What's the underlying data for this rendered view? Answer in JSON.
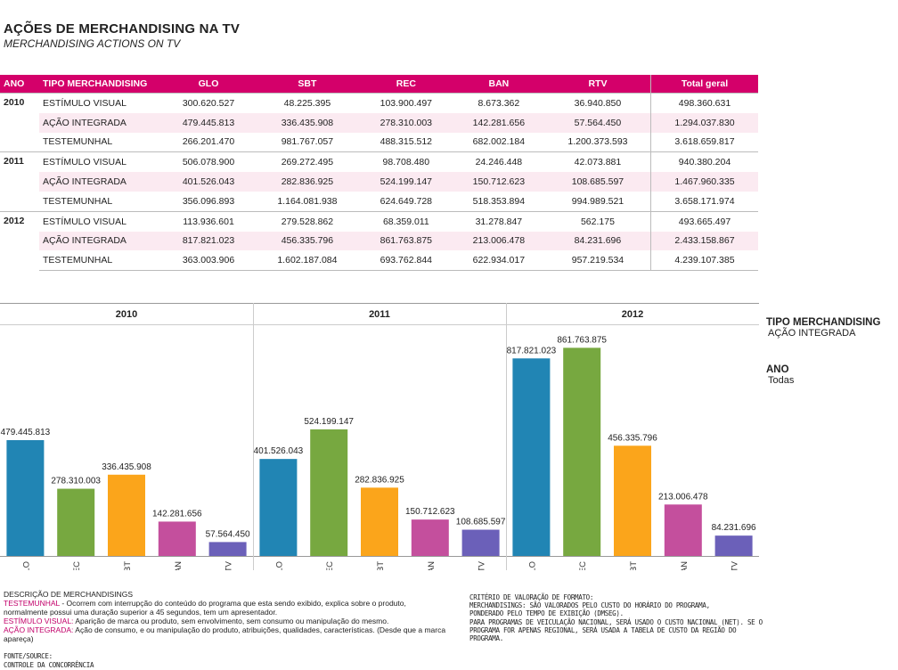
{
  "header": {
    "title": "AÇÕES DE MERCHANDISING NA TV",
    "subtitle": "MERCHANDISING ACTIONS ON TV"
  },
  "table": {
    "columns": [
      "ANO",
      "TIPO MERCHANDISING",
      "GLO",
      "SBT",
      "REC",
      "BAN",
      "RTV",
      "Total geral"
    ],
    "groups": [
      {
        "year": "2010",
        "rows": [
          {
            "tipo": "ESTÍMULO VISUAL",
            "values": [
              "300.620.527",
              "48.225.395",
              "103.900.497",
              "8.673.362",
              "36.940.850",
              "498.360.631"
            ]
          },
          {
            "tipo": "AÇÃO INTEGRADA",
            "values": [
              "479.445.813",
              "336.435.908",
              "278.310.003",
              "142.281.656",
              "57.564.450",
              "1.294.037.830"
            ]
          },
          {
            "tipo": "TESTEMUNHAL",
            "values": [
              "266.201.470",
              "981.767.057",
              "488.315.512",
              "682.002.184",
              "1.200.373.593",
              "3.618.659.817"
            ]
          }
        ]
      },
      {
        "year": "2011",
        "rows": [
          {
            "tipo": "ESTÍMULO VISUAL",
            "values": [
              "506.078.900",
              "269.272.495",
              "98.708.480",
              "24.246.448",
              "42.073.881",
              "940.380.204"
            ]
          },
          {
            "tipo": "AÇÃO INTEGRADA",
            "values": [
              "401.526.043",
              "282.836.925",
              "524.199.147",
              "150.712.623",
              "108.685.597",
              "1.467.960.335"
            ]
          },
          {
            "tipo": "TESTEMUNHAL",
            "values": [
              "356.096.893",
              "1.164.081.938",
              "624.649.728",
              "518.353.894",
              "994.989.521",
              "3.658.171.974"
            ]
          }
        ]
      },
      {
        "year": "2012",
        "rows": [
          {
            "tipo": "ESTÍMULO VISUAL",
            "values": [
              "113.936.601",
              "279.528.862",
              "68.359.011",
              "31.278.847",
              "562.175",
              "493.665.497"
            ]
          },
          {
            "tipo": "AÇÃO INTEGRADA",
            "values": [
              "817.821.023",
              "456.335.796",
              "861.763.875",
              "213.006.478",
              "84.231.696",
              "2.433.158.867"
            ]
          },
          {
            "tipo": "TESTEMUNHAL",
            "values": [
              "363.003.906",
              "1.602.187.084",
              "693.762.844",
              "622.934.017",
              "957.219.534",
              "4.239.107.385"
            ]
          }
        ]
      }
    ]
  },
  "filters": {
    "tipo_label": "TIPO MERCHANDISING",
    "tipo_value": "AÇÃO INTEGRADA",
    "ano_label": "ANO",
    "ano_value": "Todas"
  },
  "chart_data": {
    "type": "bar",
    "panels": [
      "2010",
      "2011",
      "2012"
    ],
    "categories": [
      "GLO",
      "REC",
      "SBT",
      "BAN",
      "RTV"
    ],
    "colors": {
      "GLO": "#2185b4",
      "REC": "#77a840",
      "SBT": "#fba51b",
      "BAN": "#c44f9d",
      "RTV": "#6b60b9"
    },
    "series": [
      {
        "panel": "2010",
        "values": [
          479445813,
          278310003,
          336435908,
          142281656,
          57564450
        ],
        "labels": [
          "479.445.813",
          "278.310.003",
          "336.435.908",
          "142.281.656",
          "57.564.450"
        ]
      },
      {
        "panel": "2011",
        "values": [
          401526043,
          524199147,
          282836925,
          150712623,
          108685597
        ],
        "labels": [
          "401.526.043",
          "524.199.147",
          "282.836.925",
          "150.712.623",
          "108.685.597"
        ]
      },
      {
        "panel": "2012",
        "values": [
          817821023,
          861763875,
          456335796,
          213006478,
          84231696
        ],
        "labels": [
          "817.821.023",
          "861.763.875",
          "456.335.796",
          "213.006.478",
          "84.231.696"
        ]
      }
    ],
    "ylim": [
      0,
      900000000
    ]
  },
  "notes": {
    "heading": "DESCRIÇÃO DE MERCHANDISINGS",
    "test_term": "TESTEMUNHAL",
    "test_text": " - Ocorrem com interrupção do conteúdo do programa que esta sendo exibido, explica sobre o produto, normalmente possui uma duração superior a 45 segundos, tem um apresentador.",
    "est_term": "ESTÍMULO VISUAL:",
    "est_text": " Aparição de marca ou produto, sem envolvimento, sem consumo ou manipulação do mesmo.",
    "acao_term": "AÇÃO INTEGRADA:",
    "acao_text": " Ação de consumo, e ou manipulação do produto, atribuições, qualidades, características. (Desde que a marca apareça)",
    "fonte": "FONTE/SOURCE:",
    "fonte_value": "CONTROLE DA CONCORRÊNCIA",
    "criterio_heading": "CRITÉRIO DE VALORAÇÃO DE FORMATO:",
    "criterio_1": "MERCHANDISINGS: SÃO VALORADOS PELO CUSTO DO HORÁRIO DO PROGRAMA,",
    "criterio_2": "PONDERADO PELO TEMPO DE EXIBIÇÃO (DMSEG).",
    "criterio_3": "PARA PROGRAMAS DE VEICULAÇÃO NACIONAL, SERÁ USADO O CUSTO NACIONAL (NET). SE O PROGRAMA FOR APENAS REGIONAL, SERÁ USADA A TABELA DE CUSTO DA REGIÃO DO PROGRAMA."
  }
}
